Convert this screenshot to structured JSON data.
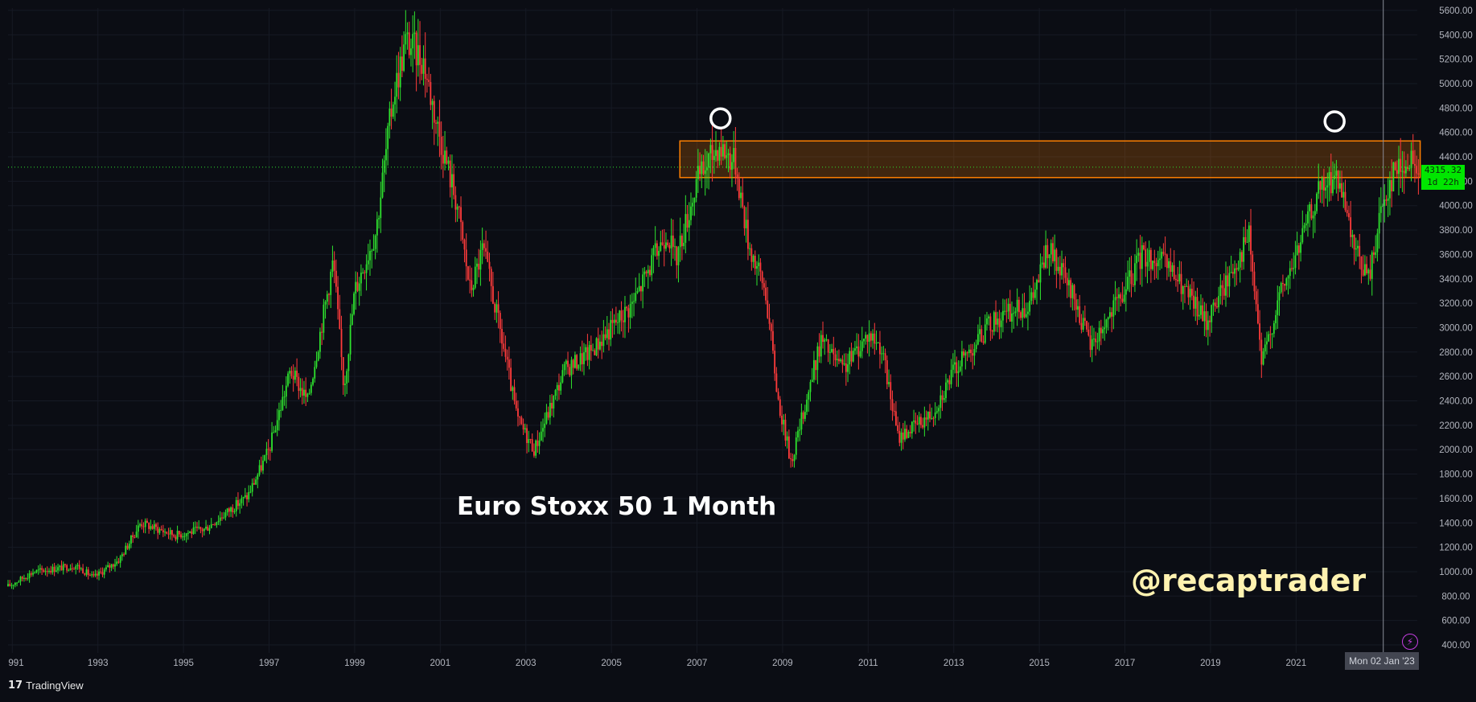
{
  "chart_data": {
    "type": "candlestick",
    "title": "Euro Stoxx 50 1 Month",
    "timeframe": "1 Month",
    "x_tick_labels": [
      "991",
      "1993",
      "1995",
      "1997",
      "1999",
      "2001",
      "2003",
      "2005",
      "2007",
      "2009",
      "2011",
      "2013",
      "2015",
      "2017",
      "2019",
      "2021"
    ],
    "y_tick_labels": [
      "5600.00",
      "5400.00",
      "5200.00",
      "5000.00",
      "4800.00",
      "4600.00",
      "4400.00",
      "4200.00",
      "4000.00",
      "3800.00",
      "3600.00",
      "3400.00",
      "3200.00",
      "3000.00",
      "2800.00",
      "2600.00",
      "2400.00",
      "2200.00",
      "2000.00",
      "1800.00",
      "1600.00",
      "1400.00",
      "1200.00",
      "1000.00",
      "800.00",
      "600.00",
      "400.00"
    ],
    "ylim": [
      360,
      5660
    ],
    "xlim": [
      1990.9,
      2023.9
    ],
    "grid": true,
    "last_price": 4315.32,
    "last_price_label": "4315.32",
    "countdown_label": "1d 22h",
    "crosshair_date_label": "Mon 02 Jan '23",
    "resistance_zone": {
      "low": 4230,
      "high": 4530,
      "from_year": 2006.6,
      "to_year": 2023.9,
      "color": "#ff7f00"
    },
    "highlight_markers": [
      {
        "year": 2007.55,
        "value": 4715
      },
      {
        "year": 2021.9,
        "value": 4690
      }
    ],
    "key_points": [
      {
        "year": 1990.9,
        "value": 880
      },
      {
        "year": 1991.5,
        "value": 1000
      },
      {
        "year": 1992.5,
        "value": 1050
      },
      {
        "year": 1992.9,
        "value": 950
      },
      {
        "year": 1993.5,
        "value": 1100
      },
      {
        "year": 1994.0,
        "value": 1400
      },
      {
        "year": 1994.8,
        "value": 1300
      },
      {
        "year": 1995.5,
        "value": 1350
      },
      {
        "year": 1996.5,
        "value": 1620
      },
      {
        "year": 1997.0,
        "value": 2000
      },
      {
        "year": 1997.5,
        "value": 2650
      },
      {
        "year": 1997.9,
        "value": 2400
      },
      {
        "year": 1998.5,
        "value": 3550
      },
      {
        "year": 1998.75,
        "value": 2500
      },
      {
        "year": 1999.0,
        "value": 3300
      },
      {
        "year": 1999.5,
        "value": 3800
      },
      {
        "year": 1999.9,
        "value": 4900
      },
      {
        "year": 2000.2,
        "value": 5350
      },
      {
        "year": 2000.6,
        "value": 5200
      },
      {
        "year": 2000.9,
        "value": 4700
      },
      {
        "year": 2001.4,
        "value": 4000
      },
      {
        "year": 2001.7,
        "value": 3300
      },
      {
        "year": 2002.0,
        "value": 3650
      },
      {
        "year": 2002.5,
        "value": 2800
      },
      {
        "year": 2002.8,
        "value": 2250
      },
      {
        "year": 2003.2,
        "value": 2000
      },
      {
        "year": 2003.9,
        "value": 2650
      },
      {
        "year": 2004.5,
        "value": 2800
      },
      {
        "year": 2005.5,
        "value": 3200
      },
      {
        "year": 2006.3,
        "value": 3800
      },
      {
        "year": 2006.5,
        "value": 3550
      },
      {
        "year": 2007.0,
        "value": 4200
      },
      {
        "year": 2007.5,
        "value": 4500
      },
      {
        "year": 2007.9,
        "value": 4350
      },
      {
        "year": 2008.2,
        "value": 3700
      },
      {
        "year": 2008.6,
        "value": 3300
      },
      {
        "year": 2008.9,
        "value": 2400
      },
      {
        "year": 2009.2,
        "value": 1900
      },
      {
        "year": 2009.9,
        "value": 2900
      },
      {
        "year": 2010.4,
        "value": 2650
      },
      {
        "year": 2011.0,
        "value": 2950
      },
      {
        "year": 2011.3,
        "value": 2850
      },
      {
        "year": 2011.7,
        "value": 2100
      },
      {
        "year": 2012.5,
        "value": 2300
      },
      {
        "year": 2013.0,
        "value": 2650
      },
      {
        "year": 2013.9,
        "value": 3050
      },
      {
        "year": 2014.8,
        "value": 3200
      },
      {
        "year": 2015.2,
        "value": 3650
      },
      {
        "year": 2015.8,
        "value": 3250
      },
      {
        "year": 2016.2,
        "value": 2850
      },
      {
        "year": 2017.0,
        "value": 3300
      },
      {
        "year": 2017.4,
        "value": 3600
      },
      {
        "year": 2018.0,
        "value": 3500
      },
      {
        "year": 2018.9,
        "value": 3050
      },
      {
        "year": 2019.9,
        "value": 3750
      },
      {
        "year": 2020.2,
        "value": 2700
      },
      {
        "year": 2020.6,
        "value": 3250
      },
      {
        "year": 2020.9,
        "value": 3500
      },
      {
        "year": 2021.5,
        "value": 4100
      },
      {
        "year": 2021.95,
        "value": 4250
      },
      {
        "year": 2022.3,
        "value": 3700
      },
      {
        "year": 2022.7,
        "value": 3400
      },
      {
        "year": 2023.0,
        "value": 4000
      },
      {
        "year": 2023.3,
        "value": 4300
      },
      {
        "year": 2023.6,
        "value": 4350
      },
      {
        "year": 2023.9,
        "value": 4315
      }
    ],
    "colors": {
      "up": "#2ee22e",
      "down": "#ff3b3b",
      "background": "#0b0d14",
      "grid": "#161a24",
      "axis_text": "#b2b5be"
    }
  },
  "annotations": {
    "title": "Euro Stoxx 50 1 Month",
    "watermark": "@recaptrader"
  },
  "branding": {
    "logo_mark": "17",
    "name": "TradingView"
  },
  "icons": {
    "alert": "lightning-icon"
  }
}
